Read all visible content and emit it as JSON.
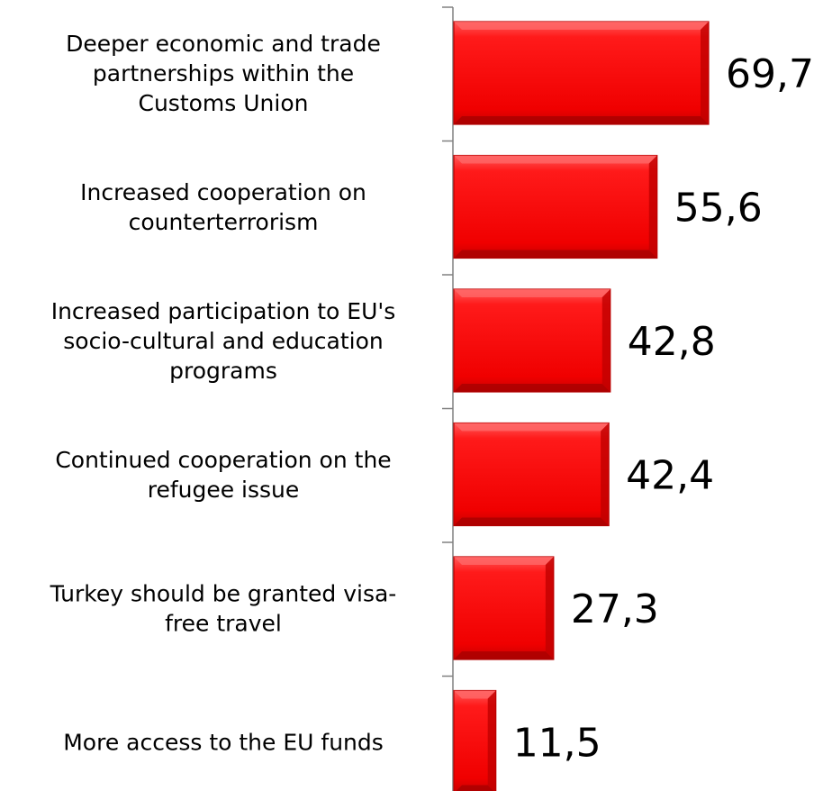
{
  "chart_data": {
    "type": "bar",
    "orientation": "horizontal",
    "categories": [
      [
        "Deeper economic and trade",
        "partnerships within the",
        "Customs Union"
      ],
      [
        "Increased cooperation on",
        "counterterrorism"
      ],
      [
        "Increased participation to EU's",
        "socio-cultural and education",
        "programs"
      ],
      [
        "Continued cooperation on the",
        "refugee issue"
      ],
      [
        "Turkey should be granted visa-",
        "free travel"
      ],
      [
        "More access to the EU funds"
      ]
    ],
    "values": [
      69.7,
      55.6,
      42.8,
      42.4,
      27.3,
      11.5
    ],
    "value_labels": [
      "69,7",
      "55,6",
      "42,8",
      "42,4",
      "27,3",
      "11,5"
    ],
    "xlim": [
      0,
      100
    ],
    "grid": false,
    "legend": "none",
    "colors": {
      "bar": "#ff0000",
      "bar_dark": "#b80000",
      "axis": "#808080"
    }
  }
}
